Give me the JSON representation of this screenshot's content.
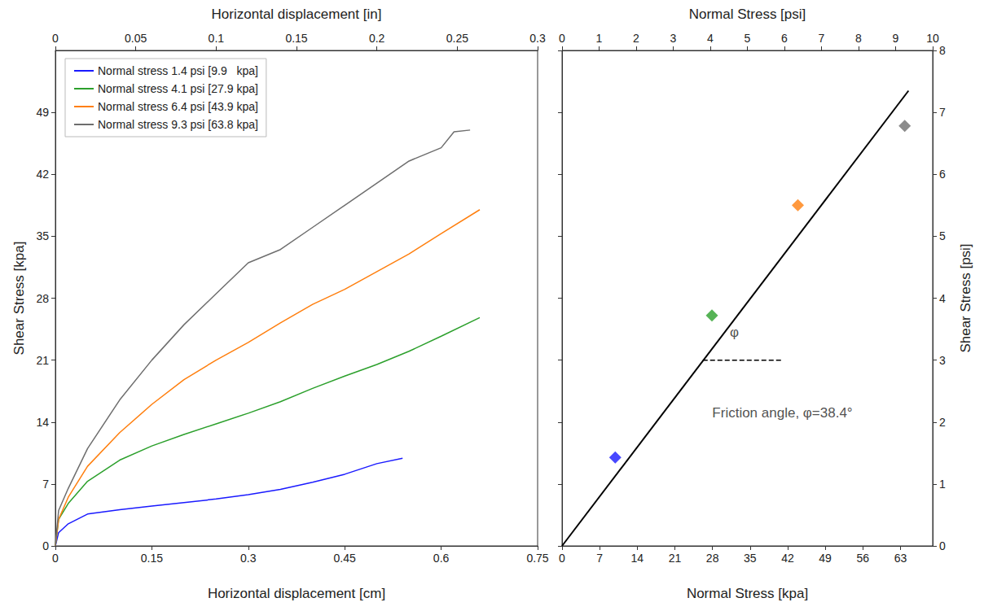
{
  "chart_data": [
    {
      "type": "line",
      "x_label": "Horizontal displacement [cm]",
      "x2_label": "Horizontal displacement [in]",
      "y_label": "Shear Stress [kpa]",
      "xlim": [
        0,
        0.75
      ],
      "xticks": [
        0,
        0.15,
        0.3,
        0.45,
        0.6,
        0.75
      ],
      "x2lim": [
        0,
        0.3
      ],
      "x2ticks": [
        0,
        0.05,
        0.1,
        0.15,
        0.2,
        0.25,
        0.3
      ],
      "ylim": [
        0,
        56
      ],
      "yticks": [
        0,
        7,
        14,
        21,
        28,
        35,
        42,
        49
      ],
      "grid": false,
      "legend": "upper left",
      "series": [
        {
          "name": "Normal stress 1.4 psi [9.9   kpa]",
          "color": "#1a1aff",
          "x": [
            0,
            0.005,
            0.02,
            0.05,
            0.1,
            0.15,
            0.2,
            0.25,
            0.3,
            0.35,
            0.4,
            0.45,
            0.5,
            0.54
          ],
          "values": [
            0,
            1.5,
            2.5,
            3.6,
            4.1,
            4.5,
            4.9,
            5.3,
            5.8,
            6.4,
            7.2,
            8.1,
            9.3,
            9.9
          ]
        },
        {
          "name": "Normal stress 4.1 psi [27.9 kpa]",
          "color": "#2ca02c",
          "x": [
            0,
            0.005,
            0.02,
            0.05,
            0.1,
            0.15,
            0.2,
            0.25,
            0.3,
            0.35,
            0.4,
            0.45,
            0.5,
            0.55,
            0.6,
            0.66
          ],
          "values": [
            0,
            3,
            4.8,
            7.3,
            9.7,
            11.3,
            12.6,
            13.8,
            15,
            16.3,
            17.8,
            19.2,
            20.5,
            22,
            23.7,
            25.8
          ]
        },
        {
          "name": "Normal stress 6.4 psi [43.9 kpa]",
          "color": "#ff7f0e",
          "x": [
            0,
            0.005,
            0.02,
            0.05,
            0.1,
            0.15,
            0.2,
            0.25,
            0.3,
            0.35,
            0.4,
            0.45,
            0.5,
            0.55,
            0.6,
            0.66
          ],
          "values": [
            0,
            3,
            5.5,
            9,
            12.8,
            16,
            18.8,
            21,
            23,
            25.2,
            27.3,
            29,
            31,
            33,
            35.3,
            38
          ]
        },
        {
          "name": "Normal stress 9.3 psi [63.8 kpa]",
          "color": "#6e6e6e",
          "x": [
            0,
            0.005,
            0.02,
            0.05,
            0.1,
            0.15,
            0.2,
            0.25,
            0.3,
            0.35,
            0.4,
            0.45,
            0.5,
            0.55,
            0.6,
            0.62,
            0.645
          ],
          "values": [
            0,
            4,
            6.5,
            11,
            16.5,
            21,
            25,
            28.5,
            32,
            33.5,
            36,
            38.5,
            41,
            43.5,
            45,
            46.8,
            47
          ]
        }
      ]
    },
    {
      "type": "scatter",
      "x_label": "Normal Stress [kpa]",
      "x2_label": "Normal Stress [psi]",
      "y2_label": "Shear Stress [psi]",
      "xlim": [
        0,
        69
      ],
      "xticks": [
        0,
        7,
        14,
        21,
        28,
        35,
        42,
        49,
        56,
        63
      ],
      "x2lim": [
        0,
        10
      ],
      "x2ticks": [
        0,
        1,
        2,
        3,
        4,
        5,
        6,
        7,
        8,
        9,
        10
      ],
      "y2lim": [
        0,
        8
      ],
      "y2ticks": [
        0,
        1,
        2,
        3,
        4,
        5,
        6,
        7,
        8
      ],
      "grid": false,
      "series": [
        {
          "type": "scatter",
          "axis": "y2",
          "marker": "diamond",
          "x": [
            9.9,
            27.9,
            43.9,
            63.8
          ],
          "values": [
            1.43,
            3.72,
            5.5,
            6.78
          ],
          "colors": [
            "#1a1aff",
            "#2ca02c",
            "#ff7f0e",
            "#6e6e6e"
          ]
        },
        {
          "type": "line",
          "axis": "y2",
          "color": "#000000",
          "line_style": "solid",
          "x": [
            0,
            64.5
          ],
          "values": [
            0,
            7.35
          ]
        },
        {
          "type": "line",
          "axis": "y2",
          "color": "#000000",
          "line_style": "dashed",
          "x": [
            26.2,
            41
          ],
          "values": [
            3,
            3
          ]
        }
      ],
      "annotations": [
        {
          "text": "φ",
          "x": 30.8,
          "y": 3.45
        },
        {
          "text": "Friction angle, φ=38.4°",
          "x": 27.5,
          "y": 2.15
        }
      ]
    }
  ]
}
